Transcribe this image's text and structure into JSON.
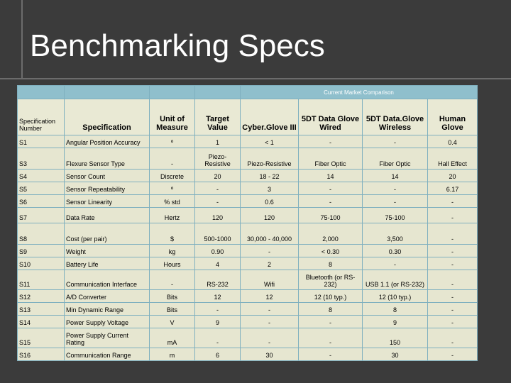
{
  "title": "Benchmarking Specs",
  "table": {
    "band_label": "Current Market Comparison",
    "headers": [
      "Specification Number",
      "Specification",
      "Unit of Measure",
      "Target Value",
      "Cyber.Glove III",
      "5DT Data Glove Wired",
      "5DT Data.Glove Wireless",
      "Human Glove"
    ],
    "rows": [
      [
        "S1",
        "Angular Position Accuracy",
        "º",
        "1",
        "< 1",
        "-",
        "-",
        "0.4"
      ],
      [
        "S3",
        "Flexure Sensor Type",
        "-",
        "Piezo-Resistive",
        "Piezo-Resistive",
        "Fiber Optic",
        "Fiber Optic",
        "Hall Effect"
      ],
      [
        "S4",
        "Sensor Count",
        "Discrete",
        "20",
        "18 - 22",
        "14",
        "14",
        "20"
      ],
      [
        "S5",
        "Sensor Repeatability",
        "º",
        "-",
        "3",
        "-",
        "-",
        "6.17"
      ],
      [
        "S6",
        "Sensor Linearity",
        "% std",
        "-",
        "0.6",
        "-",
        "-",
        "-"
      ],
      [
        "S7",
        "Data Rate",
        "Hertz",
        "120",
        "120",
        "75-100",
        "75-100",
        "-"
      ],
      [
        "S8",
        "Cost (per pair)",
        "$",
        "500-1000",
        "30,000 - 40,000",
        "2,000",
        "3,500",
        "-"
      ],
      [
        "S9",
        "Weight",
        "kg",
        "0.90",
        "-",
        "< 0.30",
        "0.30",
        "-"
      ],
      [
        "S10",
        "Battery Life",
        "Hours",
        "4",
        "2",
        "8",
        "-",
        "-"
      ],
      [
        "S11",
        "Communication Interface",
        "-",
        "RS-232",
        "Wifi",
        "Bluetooth (or RS-232)",
        "USB 1.1 (or RS-232)",
        "-"
      ],
      [
        "S12",
        "A/D Converter",
        "Bits",
        "12",
        "12",
        "12 (10 typ.)",
        "12 (10 typ.)",
        "-"
      ],
      [
        "S13",
        "Min Dynamic Range",
        "Bits",
        "-",
        "-",
        "8",
        "8",
        "-"
      ],
      [
        "S14",
        "Power Supply Voltage",
        "V",
        "9",
        "-",
        "-",
        "9",
        "-"
      ],
      [
        "S15",
        "Power Supply Current Rating",
        "mA",
        "-",
        "-",
        "-",
        "150",
        "-"
      ],
      [
        "S16",
        "Communication Range",
        "m",
        "6",
        "30",
        "-",
        "30",
        "-"
      ]
    ]
  }
}
